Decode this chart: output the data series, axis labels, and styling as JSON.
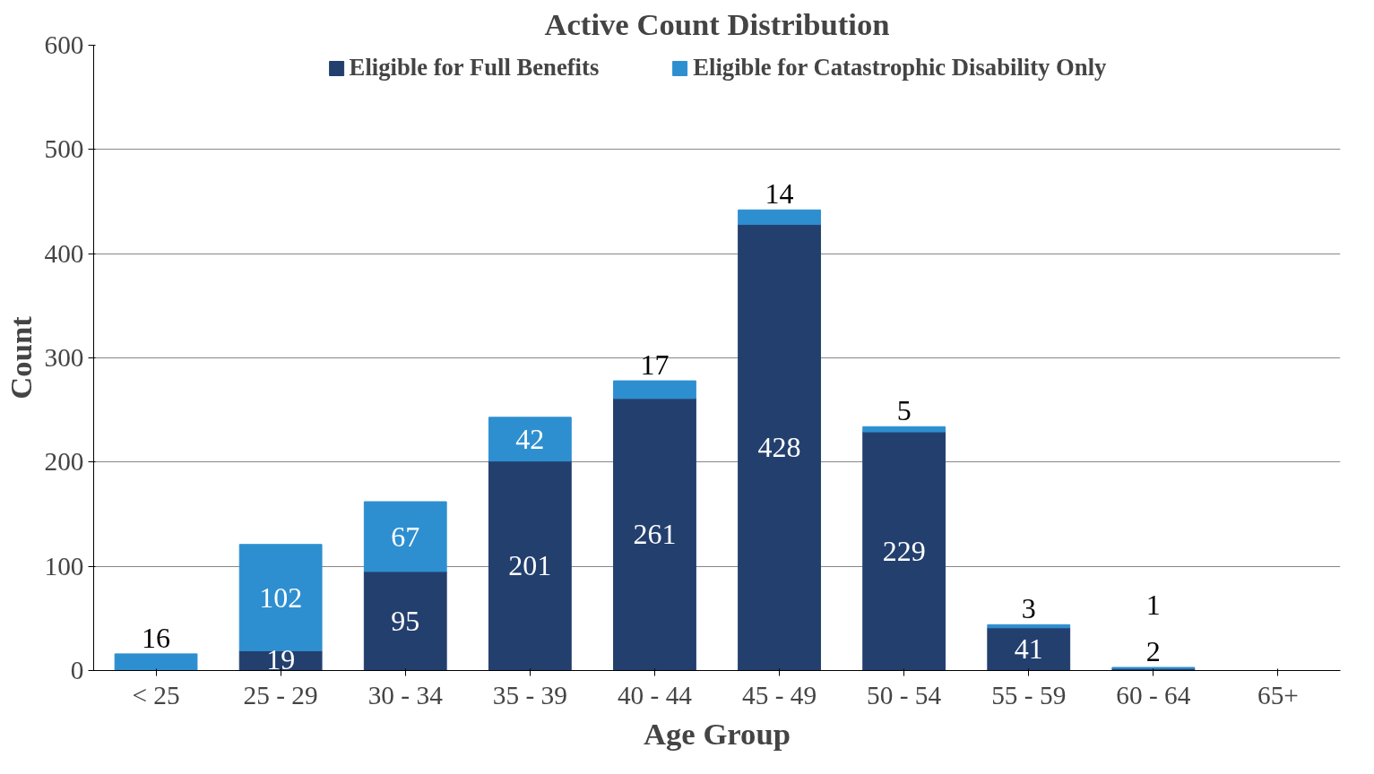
{
  "chart_data": {
    "type": "bar",
    "stacked": true,
    "title": "Active Count Distribution",
    "xlabel": "Age Group",
    "ylabel": "Count",
    "categories": [
      "< 25",
      "25 - 29",
      "30 - 34",
      "35 - 39",
      "40 - 44",
      "45 - 49",
      "50 - 54",
      "55 - 59",
      "60 - 64",
      "65+"
    ],
    "series": [
      {
        "name": "Eligible for Full Benefits",
        "color": "#233f6e",
        "values": [
          null,
          19,
          95,
          201,
          261,
          428,
          229,
          41,
          2,
          null
        ]
      },
      {
        "name": "Eligible for Catastrophic Disability Only",
        "color": "#2e8fd0",
        "values": [
          16,
          102,
          67,
          42,
          17,
          14,
          5,
          3,
          1,
          null
        ]
      }
    ],
    "ylim": [
      0,
      600
    ],
    "yticks": [
      0,
      100,
      200,
      300,
      400,
      500,
      600
    ],
    "grid": "y",
    "legend": "top",
    "data_labels": true
  }
}
